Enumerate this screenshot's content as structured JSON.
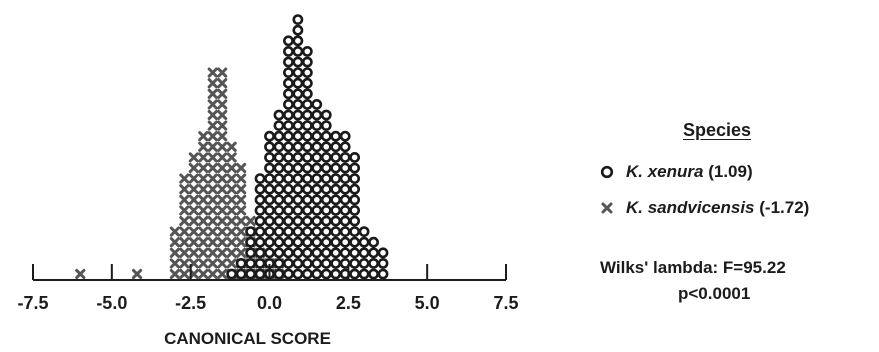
{
  "chart_data": {
    "type": "histogram",
    "xlabel": "CANONICAL SCORE",
    "xticks": [
      -7.5,
      -5.0,
      -2.5,
      0.0,
      2.5,
      5.0,
      7.5
    ],
    "xtick_labels": [
      "-7.5",
      "-5.0",
      "-2.5",
      "0.0",
      "2.5",
      "5.0",
      "7.5"
    ],
    "xlim": [
      -7.5,
      7.5
    ],
    "bin_width": 0.3,
    "legend_title": "Species",
    "legend_position": "right",
    "grid": false,
    "series": [
      {
        "name": "K. xenura",
        "label_suffix": " (1.09)",
        "marker": "circle",
        "color": "#1a1a1a",
        "bins": [
          {
            "x": -1.2,
            "count": 1
          },
          {
            "x": -0.9,
            "count": 2
          },
          {
            "x": -0.6,
            "count": 5
          },
          {
            "x": -0.3,
            "count": 10
          },
          {
            "x": 0.0,
            "count": 14
          },
          {
            "x": 0.3,
            "count": 16
          },
          {
            "x": 0.6,
            "count": 23
          },
          {
            "x": 0.9,
            "count": 25
          },
          {
            "x": 1.2,
            "count": 22
          },
          {
            "x": 1.5,
            "count": 17
          },
          {
            "x": 1.8,
            "count": 16
          },
          {
            "x": 2.1,
            "count": 14
          },
          {
            "x": 2.4,
            "count": 14
          },
          {
            "x": 2.7,
            "count": 12
          },
          {
            "x": 3.0,
            "count": 5
          },
          {
            "x": 3.3,
            "count": 4
          },
          {
            "x": 3.6,
            "count": 3
          }
        ]
      },
      {
        "name": "K. sandvicensis",
        "label_suffix": " (-1.72)",
        "marker": "x",
        "color": "#555555",
        "bins": [
          {
            "x": -6.0,
            "count": 1
          },
          {
            "x": -4.2,
            "count": 1
          },
          {
            "x": -3.0,
            "count": 5
          },
          {
            "x": -2.7,
            "count": 10
          },
          {
            "x": -2.4,
            "count": 12
          },
          {
            "x": -2.1,
            "count": 14
          },
          {
            "x": -1.8,
            "count": 20
          },
          {
            "x": -1.5,
            "count": 20
          },
          {
            "x": -1.2,
            "count": 13
          },
          {
            "x": -0.9,
            "count": 11
          },
          {
            "x": -0.6,
            "count": 6
          },
          {
            "x": -0.3,
            "count": 3
          },
          {
            "x": 0.0,
            "count": 2
          },
          {
            "x": 0.3,
            "count": 2
          }
        ]
      }
    ]
  },
  "legend": {
    "title": "Species",
    "items": [
      {
        "name": "K. xenura",
        "value": "(1.09)",
        "icon": "circle-icon"
      },
      {
        "name": "K. sandvicensis",
        "value": "(-1.72)",
        "icon": "x-icon"
      }
    ]
  },
  "stats": {
    "line1": "Wilks' lambda:  F=95.22",
    "line2": "p<0.0001"
  }
}
